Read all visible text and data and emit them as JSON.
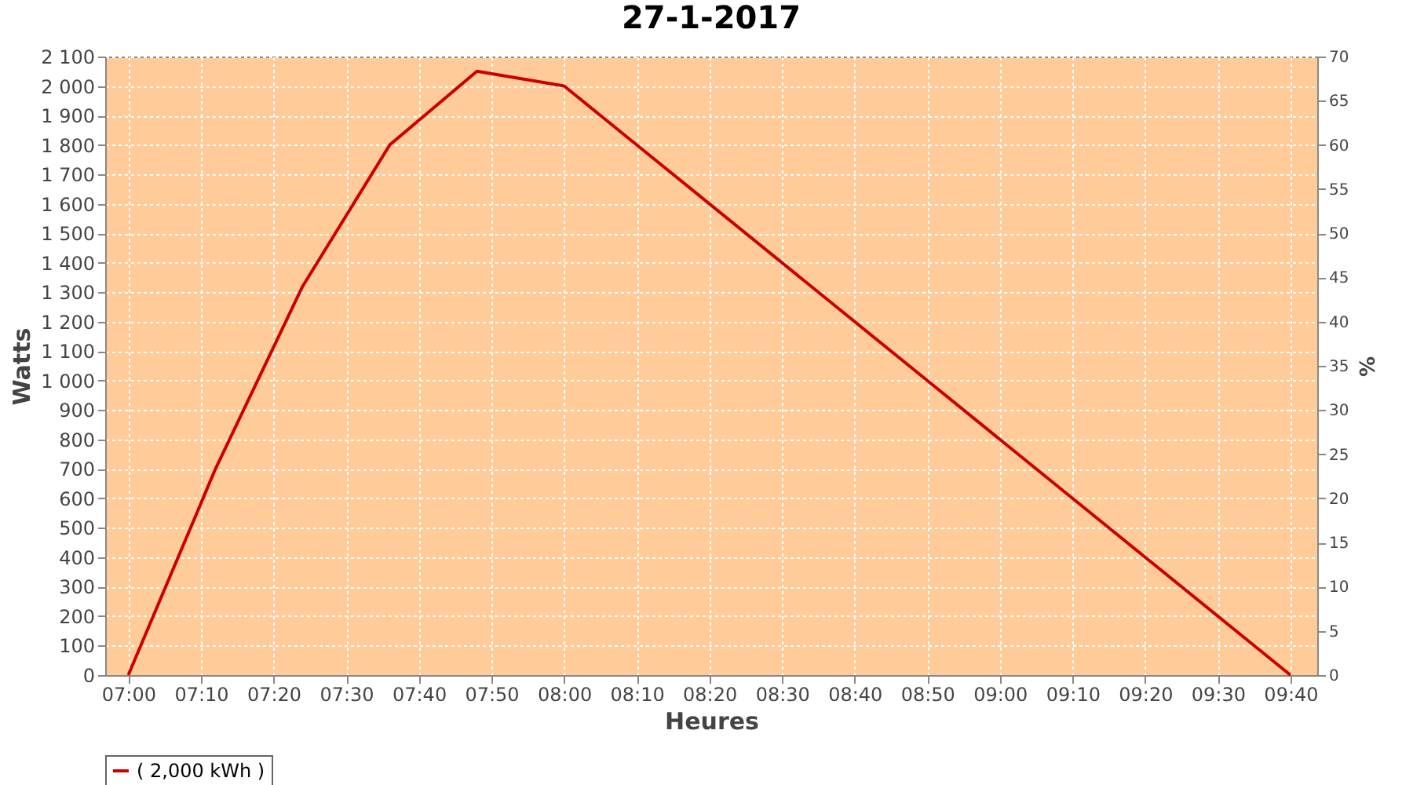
{
  "chart_data": {
    "type": "line",
    "title": "27-1-2017",
    "xlabel": "Heures",
    "ylabel": "Watts",
    "y2label": "%",
    "x": [
      7,
      7.2,
      7.4,
      7.6,
      7.8,
      8,
      9.6667
    ],
    "series": [
      {
        "name": "( 2,000 kWh )",
        "color": "#cc0000",
        "values": [
          0,
          700,
          1320,
          1800,
          2050,
          2000,
          0
        ]
      }
    ],
    "xlim": [
      6.947,
      9.728
    ],
    "xticks": [
      {
        "value": 7,
        "label": "07:00"
      },
      {
        "value": 7.1667,
        "label": "07:10"
      },
      {
        "value": 7.3333,
        "label": "07:20"
      },
      {
        "value": 7.5,
        "label": "07:30"
      },
      {
        "value": 7.6667,
        "label": "07:40"
      },
      {
        "value": 7.8333,
        "label": "07:50"
      },
      {
        "value": 8,
        "label": "08:00"
      },
      {
        "value": 8.1667,
        "label": "08:10"
      },
      {
        "value": 8.3333,
        "label": "08:20"
      },
      {
        "value": 8.5,
        "label": "08:30"
      },
      {
        "value": 8.6667,
        "label": "08:40"
      },
      {
        "value": 8.8333,
        "label": "08:50"
      },
      {
        "value": 9,
        "label": "09:00"
      },
      {
        "value": 9.1667,
        "label": "09:10"
      },
      {
        "value": 9.3333,
        "label": "09:20"
      },
      {
        "value": 9.5,
        "label": "09:30"
      },
      {
        "value": 9.6667,
        "label": "09:40"
      }
    ],
    "ylim": [
      0,
      2100
    ],
    "yticks": [
      0,
      100,
      200,
      300,
      400,
      500,
      600,
      700,
      800,
      900,
      {
        "value": 1000,
        "label": "1 000"
      },
      {
        "value": 1100,
        "label": "1 100"
      },
      {
        "value": 1200,
        "label": "1 200"
      },
      {
        "value": 1300,
        "label": "1 300"
      },
      {
        "value": 1400,
        "label": "1 400"
      },
      {
        "value": 1500,
        "label": "1 500"
      },
      {
        "value": 1600,
        "label": "1 600"
      },
      {
        "value": 1700,
        "label": "1 700"
      },
      {
        "value": 1800,
        "label": "1 800"
      },
      {
        "value": 1900,
        "label": "1 900"
      },
      {
        "value": 2000,
        "label": "2 000"
      },
      {
        "value": 2100,
        "label": "2 100"
      }
    ],
    "y2lim": [
      0,
      70
    ],
    "y2ticks": [
      0,
      5,
      10,
      15,
      20,
      25,
      30,
      35,
      40,
      45,
      50,
      55,
      60,
      65,
      70
    ],
    "grid": true,
    "legend": "bottom"
  }
}
